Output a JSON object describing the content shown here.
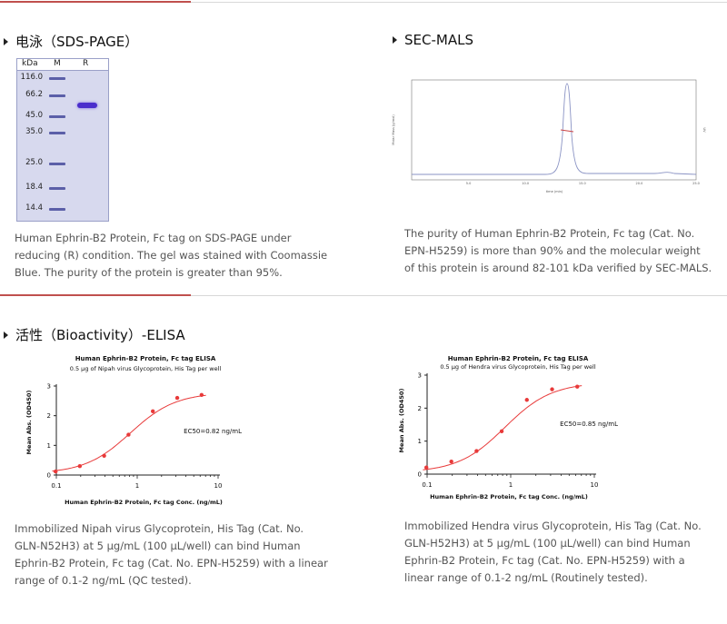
{
  "sds_page": {
    "title": "电泳（SDS-PAGE）",
    "lane_labels": [
      "kDa",
      "M",
      "R"
    ],
    "markers": [
      "116.0",
      "66.2",
      "45.0",
      "35.0",
      "25.0",
      "18.4",
      "14.4"
    ],
    "description": "Human Ephrin-B2 Protein, Fc tag on SDS-PAGE under reducing (R) condition. The gel was stained with Coomassie Blue. The purity of the protein is greater than 95%."
  },
  "sec_mals": {
    "title": "SEC-MALS",
    "description": "The purity of Human Ephrin-B2 Protein, Fc tag (Cat. No. EPN-H5259) is more than 90% and the molecular weight of this protein is around 82-101 kDa verified by SEC-MALS.",
    "chart_data": {
      "type": "line",
      "xlabel": "time (min)",
      "ylabel": "Molar Mass (g/mol)",
      "y2label": "UV",
      "x_ticks": [
        "5.0",
        "10.0",
        "15.0",
        "20.0",
        "25.0"
      ],
      "xlim": [
        0,
        25
      ],
      "peak_time": 15.6
    }
  },
  "bioactivity": {
    "title": "活性（Bioactivity）-ELISA",
    "charts": [
      {
        "chart_data": {
          "type": "scatter",
          "title": "Human Ephrin-B2 Protein, Fc tag ELISA",
          "subtitle": "0.5 μg of Nipah virus Glycoprotein, His Tag per well",
          "xlabel": "Human Ephrin-B2 Protein, Fc tag Conc. (ng/mL)",
          "ylabel": "Mean Abs. (OD450)",
          "x_scale": "log",
          "x_ticks": [
            "0.1",
            "1",
            "10"
          ],
          "y_ticks": [
            "0",
            "1",
            "2",
            "3"
          ],
          "ylim": [
            0,
            3
          ],
          "x": [
            0.098,
            0.195,
            0.39,
            0.78,
            1.56,
            3.125,
            6.25
          ],
          "y": [
            0.12,
            0.3,
            0.65,
            1.36,
            2.15,
            2.6,
            2.7
          ],
          "annotation": "EC50=0.82 ng/mL",
          "color": "#e83a3a"
        },
        "description": "Immobilized Nipah virus Glycoprotein, His Tag (Cat. No. GLN-N52H3) at 5 μg/mL (100 μL/well) can bind Human Ephrin-B2 Protein, Fc tag (Cat. No. EPN-H5259) with a linear range of 0.1-2 ng/mL (QC tested)."
      },
      {
        "chart_data": {
          "type": "scatter",
          "title": "Human Ephrin-B2 Protein, Fc tag ELISA",
          "subtitle": "0.5 μg of Hendra virus Glycoprotein, His Tag per well",
          "xlabel": "Human Ephrin-B2 Protein, Fc tag Conc. (ng/mL)",
          "ylabel": "Mean Abs. (OD450)",
          "x_scale": "log",
          "x_ticks": [
            "0.1",
            "1",
            "10"
          ],
          "y_ticks": [
            "0",
            "1",
            "2",
            "3"
          ],
          "ylim": [
            0,
            3
          ],
          "x": [
            0.098,
            0.195,
            0.39,
            0.78,
            1.56,
            3.125,
            6.25
          ],
          "y": [
            0.2,
            0.38,
            0.7,
            1.3,
            2.25,
            2.57,
            2.65
          ],
          "annotation": "EC50=0.85 ng/mL",
          "color": "#e83a3a"
        },
        "description": "Immobilized Hendra virus Glycoprotein, His Tag (Cat. No. GLN-H52H3) at 5 μg/mL (100 μL/well) can bind Human Ephrin-B2 Protein, Fc tag (Cat. No. EPN-H5259) with a linear range of 0.1-2 ng/mL (Routinely tested)."
      }
    ]
  }
}
